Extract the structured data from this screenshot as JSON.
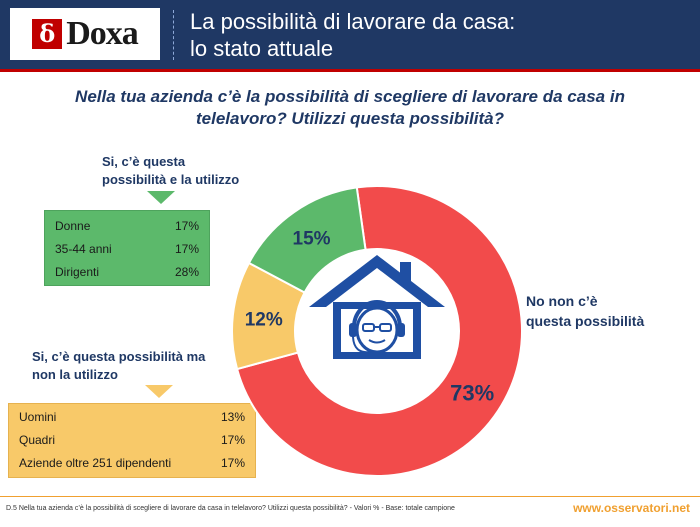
{
  "header": {
    "logo_text": "Doxa",
    "title_line1": "La possibilità di lavorare da casa:",
    "title_line2": "lo stato attuale"
  },
  "question": {
    "line1": "Nella tua azienda c’è la possibilità di scegliere di lavorare da casa in",
    "line2": "telelavoro? Utilizzi questa possibilità?"
  },
  "green_panel": {
    "caption_line1": "Si, c’è questa",
    "caption_line2": "possibilità e la utilizzo",
    "rows": [
      {
        "label": "Donne",
        "value": "17%"
      },
      {
        "label": "35-44 anni",
        "value": "17%"
      },
      {
        "label": "Dirigenti",
        "value": "28%"
      }
    ]
  },
  "yellow_panel": {
    "caption_line1": "Si, c’è questa possibilità ma",
    "caption_line2": "non la utilizzo",
    "rows": [
      {
        "label": "Uomini",
        "value": "13%"
      },
      {
        "label": "Quadri",
        "value": "17%"
      },
      {
        "label": "Aziende oltre 251 dipendenti",
        "value": "17%"
      }
    ]
  },
  "chart_data": {
    "type": "pie",
    "donut": true,
    "slices": [
      {
        "label": "No non c’è questa possibilità",
        "value": 73,
        "value_label": "73%",
        "color": "#f24b4b"
      },
      {
        "label": "Si, c’è questa possibilità ma non la utilizzo",
        "value": 12,
        "value_label": "12%",
        "color": "#f8c969"
      },
      {
        "label": "Si, c’è questa possibilità e la utilizzo",
        "value": 15,
        "value_label": "15%",
        "color": "#5cb96b"
      }
    ],
    "outside_label": {
      "line1": "No non c’è",
      "line2": "questa possibilità"
    }
  },
  "colors": {
    "header_bg": "#1f3864",
    "accent_red": "#c00000",
    "text_navy": "#1f3864",
    "footer_orange": "#f0a030",
    "icon_blue": "#1f4fa3"
  },
  "center_icon": "house-with-headset-person-icon",
  "footer": {
    "note": "D.5 Nella tua azienda c’è la possibilità di scegliere di lavorare da casa in telelavoro? Utilizzi questa possibilità? - Valori % - Base: totale campione",
    "site": "www.osservatori.net"
  }
}
